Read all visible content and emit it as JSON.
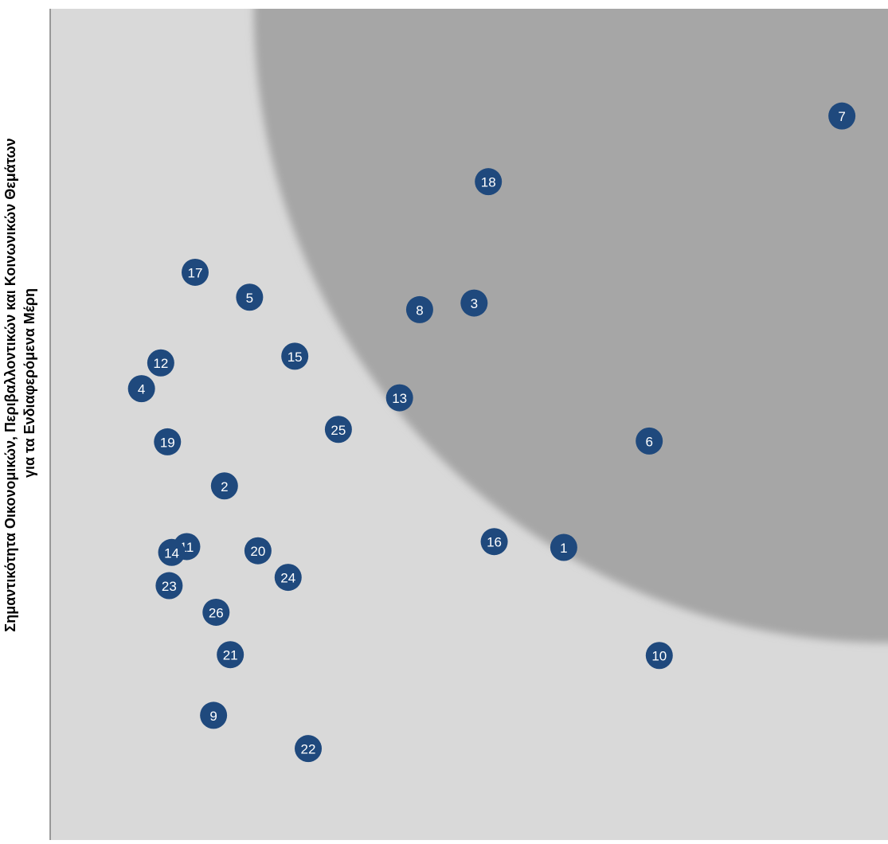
{
  "chart_data": {
    "type": "scatter",
    "title": "",
    "xlabel": "",
    "ylabel_lines": [
      "Σημαντικότητα Οικονομικών, Περιβαλλοντικών και Κοινωνικών Θεμάτων",
      "για τα Ενδιαφερόμενα Μέρη"
    ],
    "xlim": [
      0,
      100
    ],
    "ylim": [
      0,
      100
    ],
    "grid": false,
    "legend": "none",
    "colors": {
      "plot_background": "#d9d9d9",
      "material_zone": "#a6a6a6",
      "marker": "#1f497d",
      "marker_label": "#ffffff",
      "axis_line": "#7f7f7f"
    },
    "material_zone": {
      "shape": "quarter-circle",
      "center": [
        100,
        100
      ],
      "radius": 76
    },
    "points": [
      {
        "label": "1",
        "x": 61.3,
        "y": 35.2
      },
      {
        "label": "2",
        "x": 20.8,
        "y": 42.6
      },
      {
        "label": "3",
        "x": 50.6,
        "y": 64.6
      },
      {
        "label": "4",
        "x": 10.9,
        "y": 54.3
      },
      {
        "label": "5",
        "x": 23.8,
        "y": 65.3
      },
      {
        "label": "6",
        "x": 71.5,
        "y": 48.0
      },
      {
        "label": "7",
        "x": 94.5,
        "y": 87.1
      },
      {
        "label": "8",
        "x": 44.1,
        "y": 63.8
      },
      {
        "label": "9",
        "x": 19.5,
        "y": 15.0
      },
      {
        "label": "10",
        "x": 72.7,
        "y": 22.2
      },
      {
        "label": "11",
        "x": 16.3,
        "y": 35.3
      },
      {
        "label": "12",
        "x": 13.2,
        "y": 57.4
      },
      {
        "label": "13",
        "x": 41.7,
        "y": 53.2
      },
      {
        "label": "14",
        "x": 14.5,
        "y": 34.6
      },
      {
        "label": "15",
        "x": 29.2,
        "y": 58.2
      },
      {
        "label": "16",
        "x": 53.0,
        "y": 35.9
      },
      {
        "label": "17",
        "x": 17.3,
        "y": 68.3
      },
      {
        "label": "18",
        "x": 52.3,
        "y": 79.2
      },
      {
        "label": "19",
        "x": 14.0,
        "y": 47.9
      },
      {
        "label": "20",
        "x": 24.8,
        "y": 34.8
      },
      {
        "label": "21",
        "x": 21.5,
        "y": 22.3
      },
      {
        "label": "22",
        "x": 30.8,
        "y": 11.0
      },
      {
        "label": "23",
        "x": 14.2,
        "y": 30.6
      },
      {
        "label": "24",
        "x": 28.4,
        "y": 31.6
      },
      {
        "label": "25",
        "x": 34.4,
        "y": 49.4
      },
      {
        "label": "26",
        "x": 19.8,
        "y": 27.4
      }
    ]
  }
}
